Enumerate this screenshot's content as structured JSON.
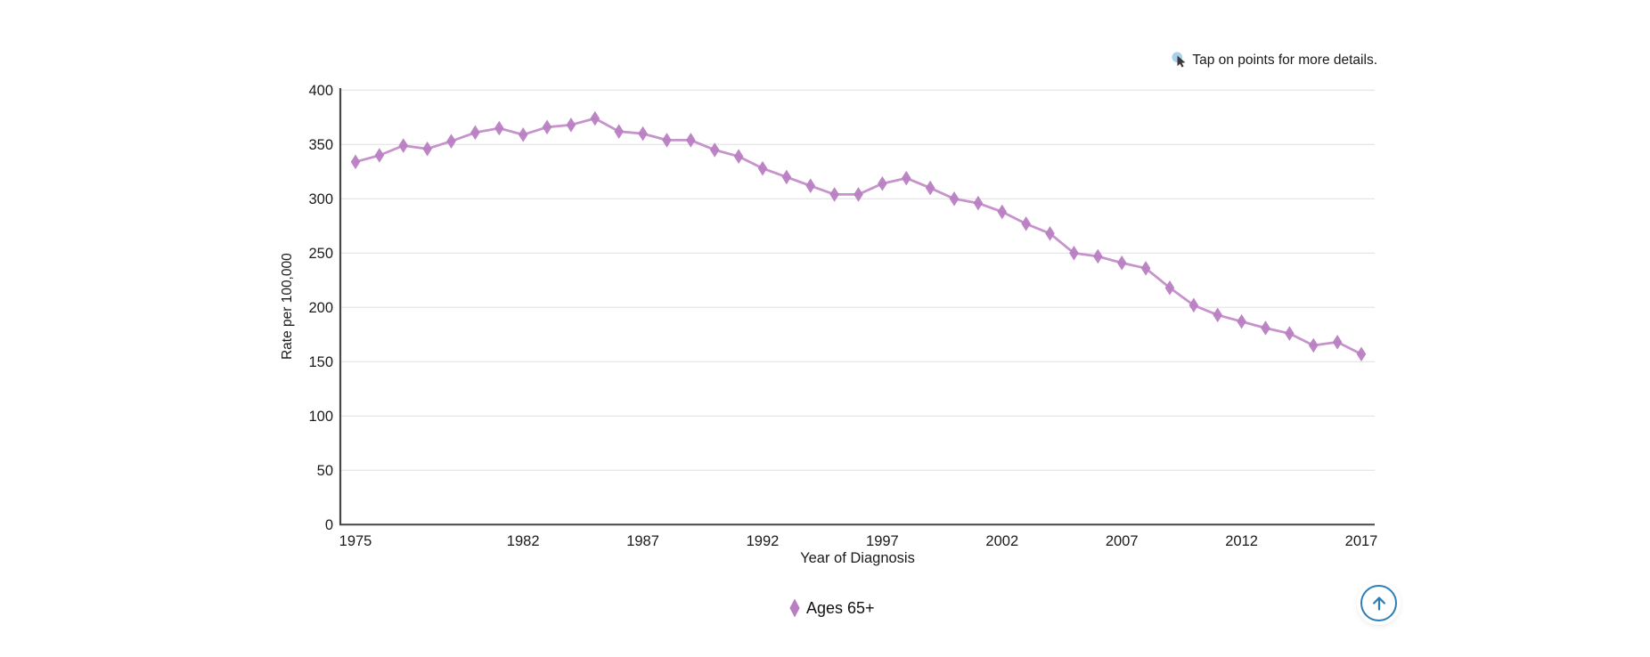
{
  "hint": {
    "icon": "tap-cursor-icon",
    "icon_circle_color": "#a9cfe9",
    "icon_cursor_color": "#3a3a3a",
    "text": "Tap on points for more details."
  },
  "chart_data": {
    "type": "line",
    "title": "",
    "xlabel": "Year of Diagnosis",
    "ylabel": "Rate per 100,000",
    "ylim": [
      0,
      400
    ],
    "y_ticks": [
      0,
      50,
      100,
      150,
      200,
      250,
      300,
      350,
      400
    ],
    "x_ticks": [
      1975,
      1982,
      1987,
      1992,
      1997,
      2002,
      2007,
      2012,
      2017
    ],
    "grid": "horizontal-only",
    "grid_color": "#e8e8e8",
    "axis_color": "#474747",
    "text_color": "#1a1a1a",
    "legend_position": "bottom-center",
    "series": [
      {
        "name": "Ages 65+",
        "marker": "diamond",
        "marker_color": "#b97ec3",
        "line_color": "#c793cc",
        "x": [
          1975,
          1976,
          1977,
          1978,
          1979,
          1980,
          1981,
          1982,
          1983,
          1984,
          1985,
          1986,
          1987,
          1988,
          1989,
          1990,
          1991,
          1992,
          1993,
          1994,
          1995,
          1996,
          1997,
          1998,
          1999,
          2000,
          2001,
          2002,
          2003,
          2004,
          2005,
          2006,
          2007,
          2008,
          2009,
          2010,
          2011,
          2012,
          2013,
          2014,
          2015,
          2016,
          2017
        ],
        "values": [
          334,
          340,
          349,
          346,
          353,
          361,
          365,
          359,
          366,
          368,
          374,
          362,
          360,
          354,
          354,
          345,
          339,
          328,
          320,
          312,
          304,
          304,
          314,
          319,
          310,
          300,
          296,
          288,
          277,
          268,
          250,
          247,
          241,
          236,
          218,
          202,
          193,
          187,
          181,
          176,
          165,
          168,
          157
        ]
      }
    ]
  },
  "scroll_top_button": {
    "icon": "arrow-up-icon",
    "color": "#2f7db6"
  }
}
